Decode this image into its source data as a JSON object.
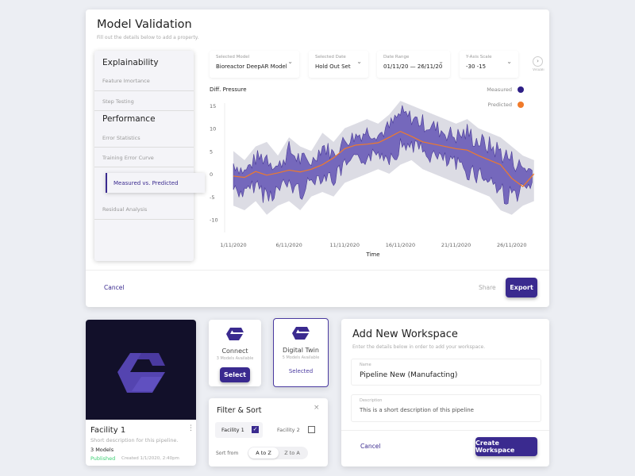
{
  "validation": {
    "title": "Model Validation",
    "subtitle": "Fill out the details below to add a property.",
    "sidebar": {
      "section1": "Explainability",
      "items1": [
        "Feature Imortance",
        "Step Testing"
      ],
      "section2": "Performance",
      "items2": [
        "Error Statistics",
        "Training Error Curve",
        "Measured vs. Predicted",
        "Residual Analysis"
      ],
      "active": "Measured vs. Predicted"
    },
    "dropdowns": [
      {
        "label": "Selected Model",
        "value": "Bioreactor DeepAR Model"
      },
      {
        "label": "Selected Date",
        "value": "Hold Out Set"
      },
      {
        "label": "Date Range",
        "value": "01/11/20 — 26/11/20"
      },
      {
        "label": "Y-Axis Scale",
        "value": "-30 -15"
      }
    ],
    "more_label": "Visuali",
    "cancel": "Cancel",
    "share": "Share",
    "export": "Export"
  },
  "chart_data": {
    "type": "area",
    "ylabel": "Diff. Pressure",
    "xlabel": "Time",
    "yticks": [
      15,
      10,
      5,
      0,
      -5,
      -10
    ],
    "ylim": [
      -12,
      15.5
    ],
    "xticks": [
      "1/11/2020",
      "6/11/2020",
      "11/11/2020",
      "16/11/2020",
      "21/11/2020",
      "26/11/2020"
    ],
    "xlim_days": [
      0.5,
      28.8
    ],
    "legend": {
      "position": "top-right",
      "items": [
        {
          "name": "Measured",
          "color": "#2e1f86"
        },
        {
          "name": "Predicted",
          "color": "#f07a2a"
        }
      ]
    },
    "days": [
      1,
      2,
      3,
      4,
      5,
      6,
      7,
      8,
      9,
      10,
      11,
      12,
      13,
      14,
      15,
      16,
      17,
      18,
      19,
      20,
      21,
      22,
      23,
      24,
      25,
      26,
      27,
      28
    ],
    "measured_upper": [
      3,
      1,
      4,
      5,
      2,
      6,
      4,
      3,
      7,
      5,
      8,
      9,
      10,
      9,
      11,
      14,
      13,
      12,
      11,
      10,
      9,
      10,
      8,
      7,
      6,
      4,
      2,
      1
    ],
    "measured_lower": [
      -4,
      -5,
      -3,
      -6,
      -4,
      -3,
      -5,
      -2,
      -1,
      -2,
      1,
      2,
      3,
      4,
      3,
      5,
      6,
      4,
      3,
      2,
      1,
      0,
      -1,
      -2,
      -5,
      -6,
      -4,
      -3
    ],
    "predicted": [
      -0.5,
      -0.8,
      0.5,
      -0.3,
      0.2,
      0.8,
      0.4,
      1.0,
      2.0,
      3.5,
      5.5,
      6.3,
      6.5,
      6.8,
      8.0,
      9.3,
      8.2,
      7.0,
      6.5,
      6.0,
      5.5,
      5.2,
      4.0,
      3.0,
      2.0,
      -1.0,
      -2.8,
      0.0
    ]
  },
  "facility": {
    "title": "Facility 1",
    "desc": "Short description for this pipeline.",
    "models": "3 Models",
    "status": "Published",
    "created": "Created 1/1/2020, 2:40pm"
  },
  "tiles": [
    {
      "name": "Connect",
      "sub": "3 Models Available",
      "button": "Select"
    },
    {
      "name": "Digital Twin",
      "sub": "5 Models Available",
      "button": "Selected"
    }
  ],
  "filter": {
    "title": "Filter & Sort",
    "options": [
      {
        "label": "Facility 1",
        "checked": true
      },
      {
        "label": "Facility 2",
        "checked": false
      }
    ],
    "sort_label": "Sort from",
    "sort": [
      "A to Z",
      "Z to A"
    ]
  },
  "workspace": {
    "title": "Add New Workspace",
    "subtitle": "Enter the details below in order to add your workspace.",
    "name_label": "Name",
    "name_value": "Pipeline New (Manufacting)",
    "desc_label": "Description",
    "desc_value": "This is a short description of this pipeline",
    "cancel": "Cancel",
    "create": "Create Workspace"
  },
  "colors": {
    "accent": "#3a2a8f",
    "published": "#3ccf73"
  }
}
